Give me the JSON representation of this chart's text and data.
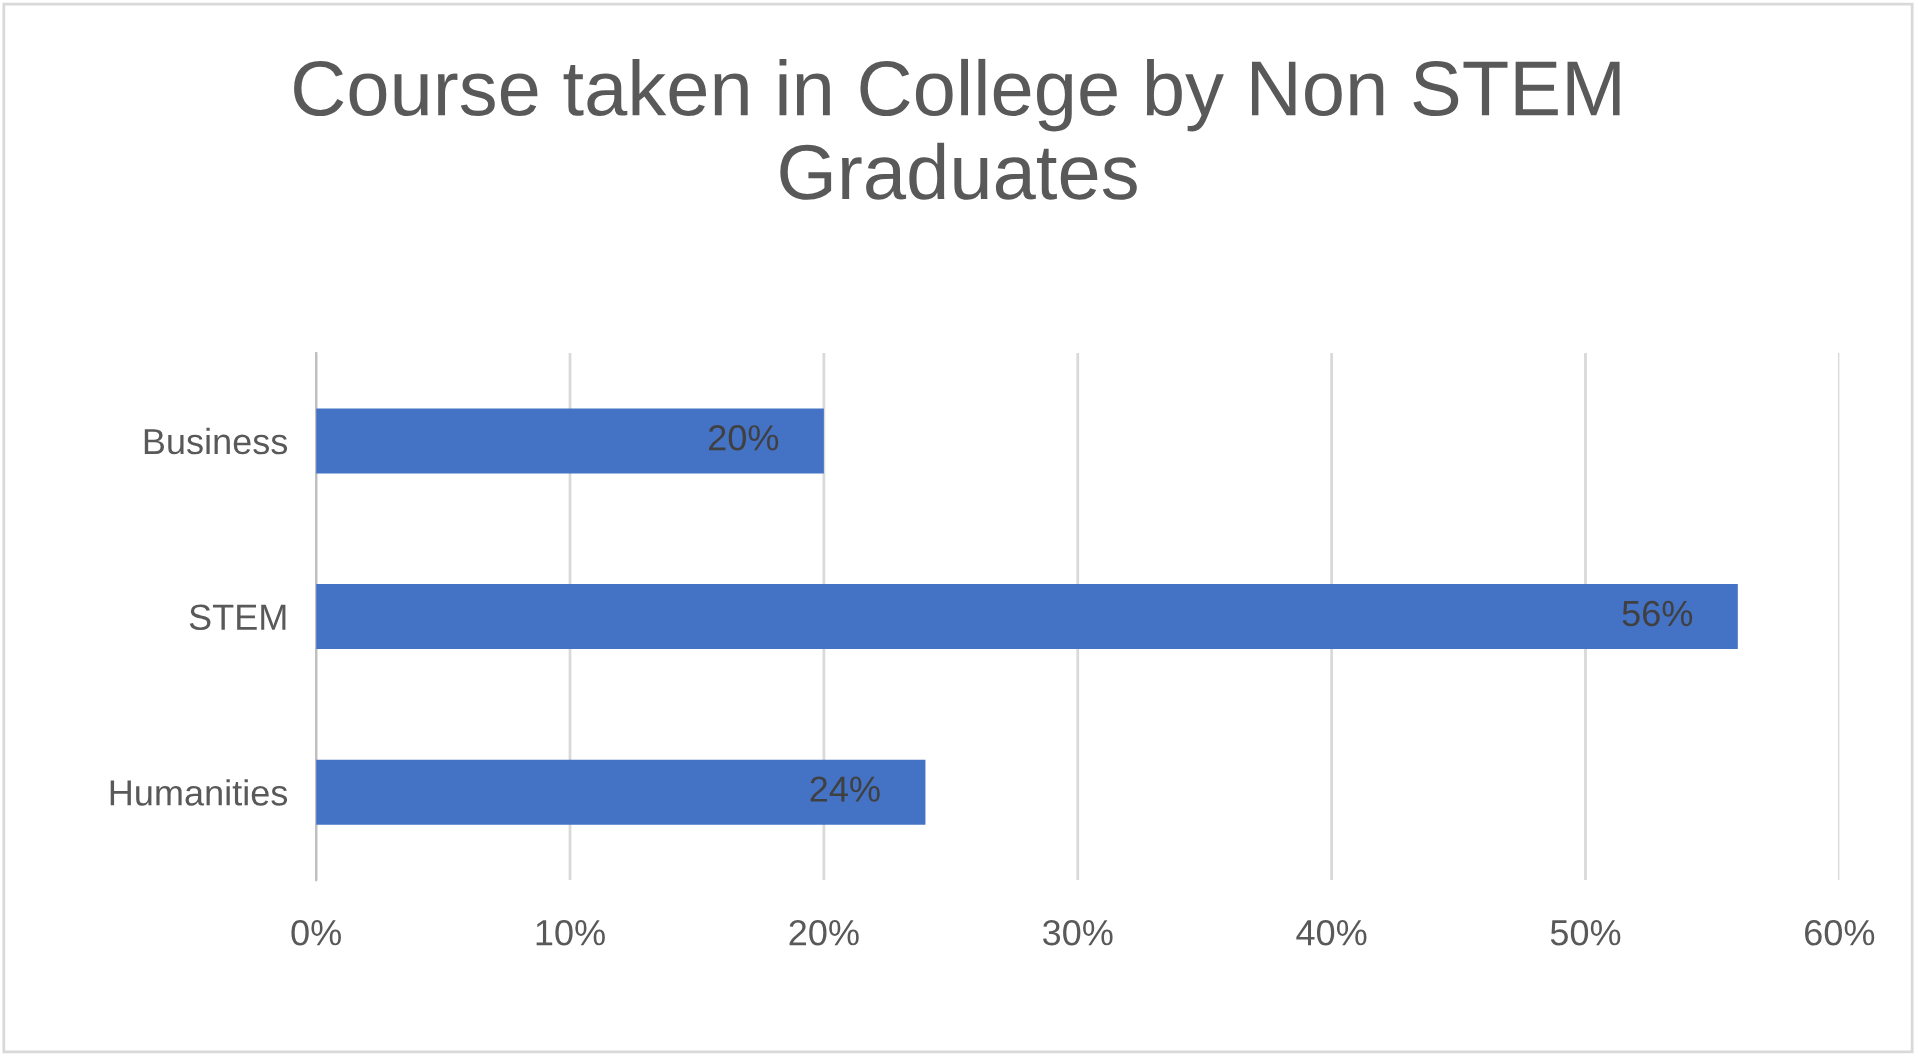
{
  "chart_data": {
    "type": "bar",
    "orientation": "horizontal",
    "title": "Course taken in College by Non STEM\nGraduates",
    "categories": [
      "Business",
      "STEM",
      "Humanities"
    ],
    "values": [
      20,
      56,
      24
    ],
    "color": "#4472c4",
    "value_labels": [
      "20%",
      "56%",
      "24%"
    ],
    "xlim": [
      0,
      60
    ],
    "xticks": [
      {
        "value": 0,
        "label": "0%"
      },
      {
        "value": 10,
        "label": "10%"
      },
      {
        "value": 20,
        "label": "20%"
      },
      {
        "value": 30,
        "label": "30%"
      },
      {
        "value": 40,
        "label": "40%"
      },
      {
        "value": 50,
        "label": "50%"
      },
      {
        "value": 60,
        "label": "60%"
      }
    ],
    "grid": "x"
  }
}
